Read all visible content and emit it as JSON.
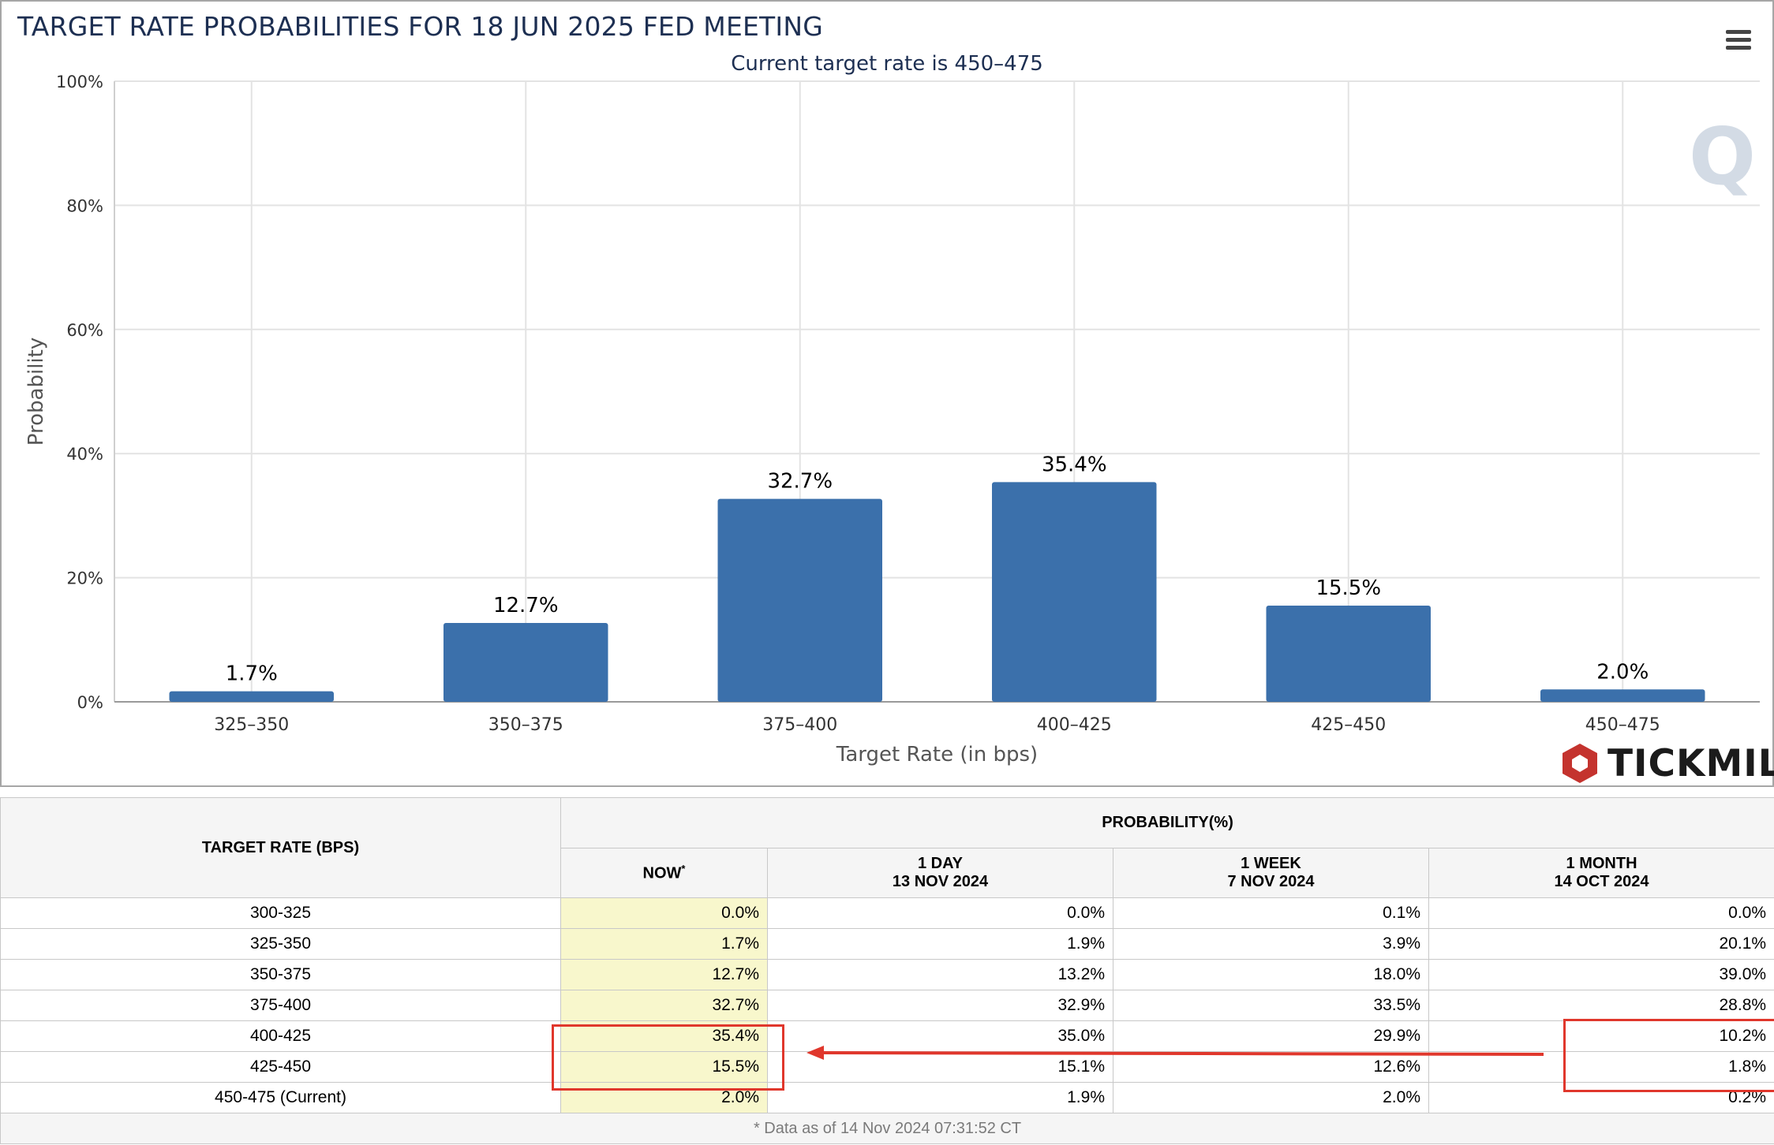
{
  "chart": {
    "title": "TARGET RATE PROBABILITIES FOR 18 JUN 2025 FED MEETING",
    "subtitle": "Current target rate is 450–475",
    "menu_icon": "hamburger-menu-icon",
    "watermark_icon": "q-watermark-icon",
    "brand": {
      "name": "TICKMILL",
      "icon": "tickmill-hexagon-logo-icon",
      "color": "#c4332e"
    }
  },
  "chart_data": {
    "type": "bar",
    "categories": [
      "325–350",
      "350–375",
      "375–400",
      "400–425",
      "425–450",
      "450–475"
    ],
    "values": [
      1.7,
      12.7,
      32.7,
      35.4,
      15.5,
      2.0
    ],
    "data_labels": [
      "1.7%",
      "12.7%",
      "32.7%",
      "35.4%",
      "15.5%",
      "2.0%"
    ],
    "xlabel": "Target Rate (in bps)",
    "ylabel": "Probability",
    "ylim": [
      0,
      100
    ],
    "yticks": [
      0,
      20,
      40,
      60,
      80,
      100
    ],
    "ytick_labels": [
      "0%",
      "20%",
      "40%",
      "60%",
      "80%",
      "100%"
    ],
    "grid": true,
    "bar_color": "#3b70ab"
  },
  "table": {
    "header": {
      "target_rate": "TARGET RATE (BPS)",
      "probability": "PROBABILITY(%)",
      "now": "NOW",
      "now_marker": "*",
      "day_label": "1 DAY",
      "day_date": "13 NOV 2024",
      "week_label": "1 WEEK",
      "week_date": "7 NOV 2024",
      "month_label": "1 MONTH",
      "month_date": "14 OCT 2024"
    },
    "rows": [
      {
        "rate": "300-325",
        "now": "0.0%",
        "day": "0.0%",
        "week": "0.1%",
        "month": "0.0%"
      },
      {
        "rate": "325-350",
        "now": "1.7%",
        "day": "1.9%",
        "week": "3.9%",
        "month": "20.1%"
      },
      {
        "rate": "350-375",
        "now": "12.7%",
        "day": "13.2%",
        "week": "18.0%",
        "month": "39.0%"
      },
      {
        "rate": "375-400",
        "now": "32.7%",
        "day": "32.9%",
        "week": "33.5%",
        "month": "28.8%"
      },
      {
        "rate": "400-425",
        "now": "35.4%",
        "day": "35.0%",
        "week": "29.9%",
        "month": "10.2%"
      },
      {
        "rate": "425-450",
        "now": "15.5%",
        "day": "15.1%",
        "week": "12.6%",
        "month": "1.8%"
      },
      {
        "rate": "450-475 (Current)",
        "now": "2.0%",
        "day": "1.9%",
        "week": "2.0%",
        "month": "0.2%"
      }
    ],
    "footnote": "* Data as of 14 Nov 2024 07:31:52 CT",
    "highlight_color": "#e0372c",
    "now_column_color": "#f8f7cc"
  }
}
